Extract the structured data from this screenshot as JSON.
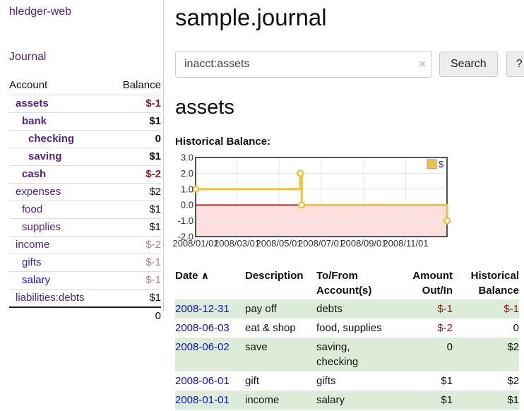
{
  "app": {
    "brand": "hledger-web"
  },
  "nav": {
    "journal": "Journal"
  },
  "sidebar": {
    "header": {
      "account": "Account",
      "balance": "Balance"
    },
    "accounts": [
      {
        "label": "assets",
        "depth": 1,
        "bold": true,
        "balance": "$-1",
        "negative": true,
        "unvisited": false
      },
      {
        "label": "bank",
        "depth": 2,
        "bold": true,
        "balance": "$1",
        "negative": false,
        "unvisited": false
      },
      {
        "label": "checking",
        "depth": 3,
        "bold": true,
        "balance": "0",
        "negative": false,
        "unvisited": false
      },
      {
        "label": "saving",
        "depth": 3,
        "bold": true,
        "balance": "$1",
        "negative": false,
        "unvisited": false
      },
      {
        "label": "cash",
        "depth": 2,
        "bold": true,
        "balance": "$-2",
        "negative": true,
        "unvisited": false
      },
      {
        "label": "expenses",
        "depth": 1,
        "bold": false,
        "balance": "$2",
        "negative": false,
        "unvisited": false
      },
      {
        "label": "food",
        "depth": 2,
        "bold": false,
        "balance": "$1",
        "negative": false,
        "unvisited": false
      },
      {
        "label": "supplies",
        "depth": 2,
        "bold": false,
        "balance": "$1",
        "negative": false,
        "unvisited": false
      },
      {
        "label": "income",
        "depth": 1,
        "bold": false,
        "balance": "$-2",
        "negative": true,
        "unvisited": false
      },
      {
        "label": "gifts",
        "depth": 2,
        "bold": false,
        "balance": "$-1",
        "negative": true,
        "unvisited": false
      },
      {
        "label": "salary",
        "depth": 2,
        "bold": false,
        "balance": "$-1",
        "negative": true,
        "unvisited": true
      },
      {
        "label": "liabilities:debts",
        "depth": 1,
        "bold": false,
        "balance": "$1",
        "negative": false,
        "unvisited": false
      }
    ],
    "total": "0"
  },
  "main": {
    "title": "sample.journal",
    "search": {
      "value": "inacct:assets",
      "clear_icon": "×",
      "search_button": "Search",
      "help_button": "?"
    },
    "account_heading": "assets",
    "chart_label": "Historical Balance:"
  },
  "register": {
    "headers": {
      "date": "Date",
      "sort_indicator": "∧",
      "description": "Description",
      "accounts": "To/From Account(s)",
      "amount": "Amount Out/In",
      "balance": "Historical Balance"
    },
    "rows": [
      {
        "date": "2008-12-31",
        "description": "pay off",
        "accounts": "debts",
        "amount": "$-1",
        "balance": "$-1"
      },
      {
        "date": "2008-06-03",
        "description": "eat & shop",
        "accounts": "food, supplies",
        "amount": "$-2",
        "balance": "0"
      },
      {
        "date": "2008-06-02",
        "description": "save",
        "accounts": "saving, checking",
        "amount": "0",
        "balance": "$2"
      },
      {
        "date": "2008-06-01",
        "description": "gift",
        "accounts": "gifts",
        "amount": "$1",
        "balance": "$2"
      },
      {
        "date": "2008-01-01",
        "description": "income",
        "accounts": "salary",
        "amount": "$1",
        "balance": "$1"
      }
    ]
  },
  "chart_data": {
    "type": "line",
    "step": true,
    "title": "Historical Balance:",
    "series": [
      {
        "name": "$",
        "color": "#edc240",
        "points": [
          [
            "2008-01-01",
            1
          ],
          [
            "2008-06-01",
            2
          ],
          [
            "2008-06-03",
            0
          ],
          [
            "2008-12-31",
            -1
          ]
        ]
      }
    ],
    "x_range": [
      "2008-01-01",
      "2008-12-31"
    ],
    "x_tick_labels": [
      "2008/01/01",
      "2008/03/01",
      "2008/05/01",
      "2008/07/01",
      "2008/09/01",
      "2008/11/01"
    ],
    "y_ticks": [
      3.0,
      2.0,
      1.0,
      0.0,
      -1.0,
      -2.0
    ],
    "ylim": [
      -2,
      3
    ],
    "grid": true,
    "legend_position": "top-right",
    "colors": {
      "zero_line": "#a40000",
      "negative_region": "#ffdede",
      "grid": "#e6e6e6",
      "border": "#545454",
      "axis_text": "#333333"
    }
  },
  "colors": {
    "link_visited": "#552288",
    "link_new": "#1111dd",
    "negative_bold": "#8b1c1c",
    "negative_light": "#b97f7f",
    "negative": "#8b1c1c",
    "row_highlight": "#ddecd8",
    "accent_series": "#edc240"
  }
}
